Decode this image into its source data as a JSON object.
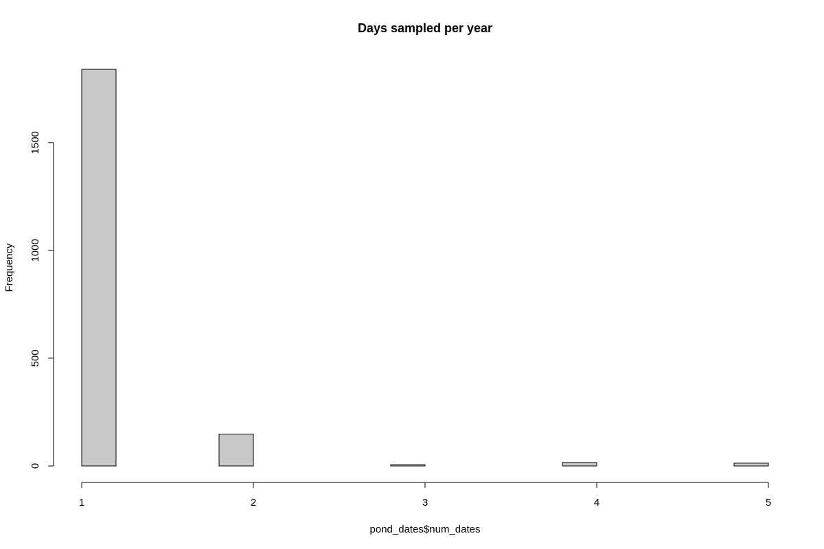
{
  "chart_data": {
    "type": "bar",
    "title": "Days sampled per year",
    "xlabel": "pond_dates$num_dates",
    "ylabel": "Frequency",
    "bins": [
      {
        "start": 1.0,
        "end": 1.2,
        "count": 1840
      },
      {
        "start": 1.2,
        "end": 1.4,
        "count": 0
      },
      {
        "start": 1.4,
        "end": 1.6,
        "count": 0
      },
      {
        "start": 1.6,
        "end": 1.8,
        "count": 0
      },
      {
        "start": 1.8,
        "end": 2.0,
        "count": 148
      },
      {
        "start": 2.0,
        "end": 2.2,
        "count": 0
      },
      {
        "start": 2.2,
        "end": 2.4,
        "count": 0
      },
      {
        "start": 2.4,
        "end": 2.6,
        "count": 0
      },
      {
        "start": 2.6,
        "end": 2.8,
        "count": 0
      },
      {
        "start": 2.8,
        "end": 3.0,
        "count": 6
      },
      {
        "start": 3.0,
        "end": 3.2,
        "count": 0
      },
      {
        "start": 3.2,
        "end": 3.4,
        "count": 0
      },
      {
        "start": 3.4,
        "end": 3.6,
        "count": 0
      },
      {
        "start": 3.6,
        "end": 3.8,
        "count": 0
      },
      {
        "start": 3.8,
        "end": 4.0,
        "count": 16
      },
      {
        "start": 4.0,
        "end": 4.2,
        "count": 0
      },
      {
        "start": 4.2,
        "end": 4.4,
        "count": 0
      },
      {
        "start": 4.4,
        "end": 4.6,
        "count": 0
      },
      {
        "start": 4.6,
        "end": 4.8,
        "count": 0
      },
      {
        "start": 4.8,
        "end": 5.0,
        "count": 13
      }
    ],
    "x_ticks": [
      "1",
      "2",
      "3",
      "4",
      "5"
    ],
    "y_ticks": [
      "0",
      "500",
      "1000",
      "1500"
    ],
    "xlim": [
      1,
      5
    ],
    "ylim": [
      0,
      1840
    ],
    "grid": false,
    "bar_color": "#c8c8c8"
  }
}
